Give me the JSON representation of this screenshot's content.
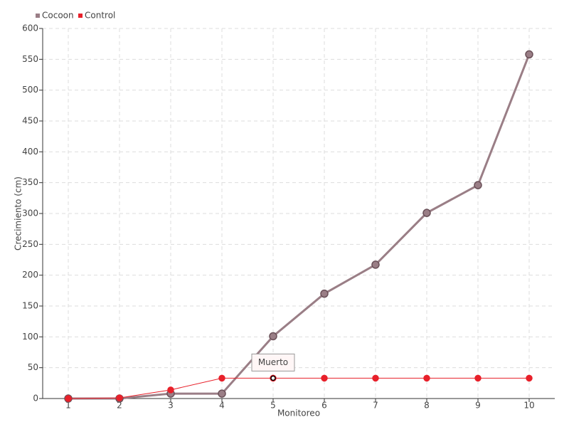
{
  "chart_data": {
    "type": "line",
    "x": [
      1,
      2,
      3,
      4,
      5,
      6,
      7,
      8,
      9,
      10
    ],
    "xlim": [
      0.5,
      10.5
    ],
    "xticks": [
      1,
      2,
      3,
      4,
      5,
      6,
      7,
      8,
      9,
      10
    ],
    "ylim": [
      0,
      600
    ],
    "yticks": [
      0,
      50,
      100,
      150,
      200,
      250,
      300,
      350,
      400,
      450,
      500,
      550,
      600
    ],
    "xlabel": "Monitoreo",
    "ylabel": "Crecimiento (cm)",
    "grid": true,
    "legend": "top-left",
    "series": [
      {
        "name": "Cocoon",
        "color": "#9a7e86",
        "values": [
          0,
          0,
          8,
          8,
          101,
          170,
          217,
          301,
          346,
          558
        ]
      },
      {
        "name": "Control",
        "color": "#e8202a",
        "values": [
          0,
          1,
          14,
          33,
          33,
          33,
          33,
          33,
          33,
          33
        ]
      }
    ],
    "annotations": [
      {
        "text": "Muerto",
        "x": 5,
        "series": "Control"
      }
    ]
  }
}
